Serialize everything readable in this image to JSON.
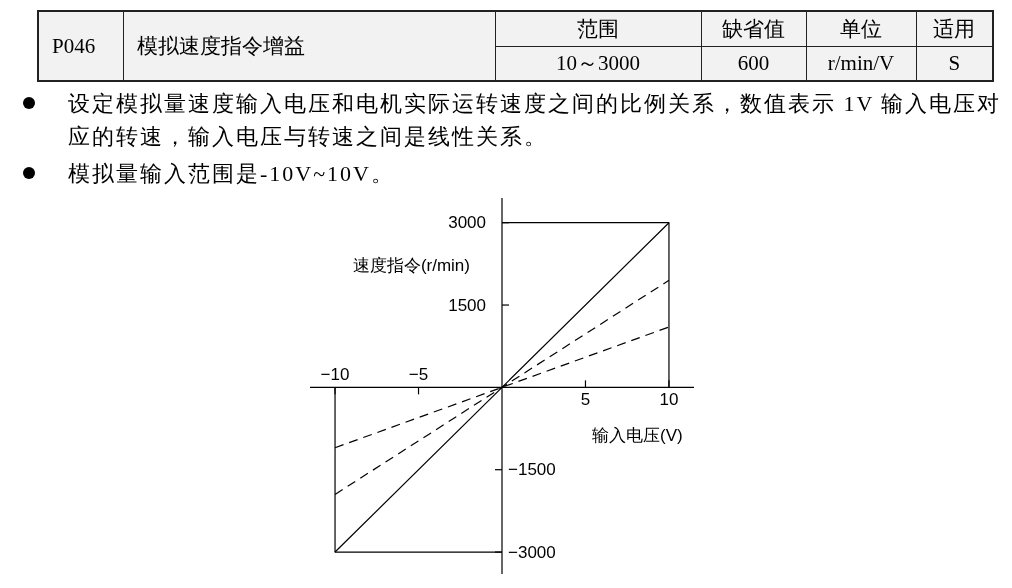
{
  "chart_data": {
    "type": "line",
    "xlabel": "输入电压(V)",
    "ylabel": "速度指令(r/min)",
    "annotations": [
      "P046",
      "模拟速度指令增益",
      "范围",
      "缺省值",
      "单位",
      "适用",
      "10～3000",
      "600",
      "r/min/V",
      "S",
      "设定模拟量速度输入电压和电机实际运转速度之间的比例关系，数值表示 1V 输入电压对应的转速，输入电压与转速之间是线性关系。",
      "模拟量输入范围是-10V~10V。"
    ],
    "xlim": [
      -11.5,
      11.5
    ],
    "xticks": [
      5,
      10
    ],
    "x2lim": [
      -11.5,
      11.5
    ],
    "x2ticks": [
      {
        "value": -10,
        "label": "−10"
      },
      {
        "value": -5,
        "label": "−5"
      }
    ],
    "ylim": [
      -3400,
      3450
    ],
    "yticks": [
      1500,
      3000
    ],
    "y2lim": [
      -3400,
      3450
    ],
    "y2ticks": [
      {
        "value": -3000,
        "label": "−3000"
      },
      {
        "value": -1500,
        "label": "−1500"
      }
    ],
    "series": [
      {
        "x": [
          -10,
          0,
          10
        ],
        "values": [
          -3000,
          0,
          3000
        ],
        "color": "#000000",
        "line_style": "solid"
      },
      {
        "x": [
          -10,
          0,
          10
        ],
        "values": [
          -1950,
          0,
          1950
        ],
        "color": "#000000",
        "line_style": "dashed"
      },
      {
        "x": [
          -10,
          0,
          10
        ],
        "values": [
          -1100,
          0,
          1100
        ],
        "color": "#000000",
        "line_style": "dashed"
      },
      {
        "x": [
          0,
          10,
          10
        ],
        "values": [
          3000,
          3000,
          0
        ],
        "color": "#000000",
        "line_style": "solid"
      },
      {
        "x": [
          -10,
          -10,
          0
        ],
        "values": [
          0,
          -3000,
          -3000
        ],
        "color": "#000000",
        "line_style": "solid"
      }
    ]
  }
}
